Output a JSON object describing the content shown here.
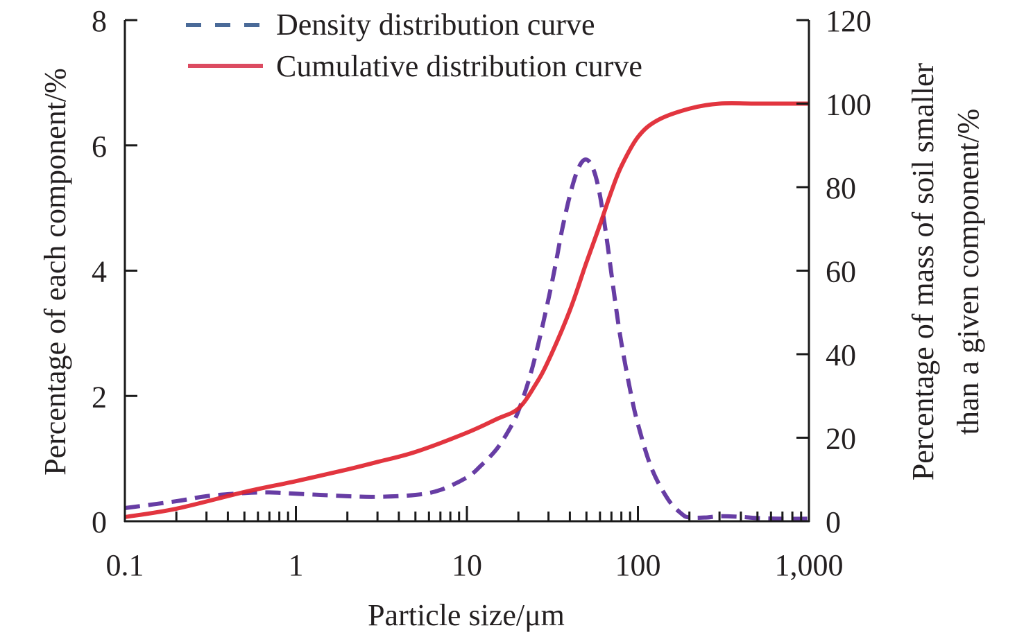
{
  "chart_data": {
    "type": "line",
    "title": "",
    "xlabel": "Particle size/μm",
    "ylabel_left": "Percentage of each component/%",
    "ylabel_right": [
      "Percentage of mass of soil smaller",
      "than a given component/%"
    ],
    "xscale": "log",
    "xlim": [
      0.1,
      1000
    ],
    "ylim_left": [
      0,
      8
    ],
    "ylim_right": [
      0,
      120
    ],
    "x_ticks": [
      0.1,
      1,
      10,
      100,
      1000
    ],
    "x_tick_labels": [
      "0.1",
      "1",
      "10",
      "100",
      "1,000"
    ],
    "y_left_ticks": [
      0,
      2,
      4,
      6,
      8
    ],
    "y_left_tick_labels": [
      "0",
      "2",
      "4",
      "6",
      "8"
    ],
    "y_right_ticks": [
      0,
      20,
      40,
      60,
      80,
      100,
      120
    ],
    "y_right_tick_labels": [
      "0",
      "20",
      "40",
      "60",
      "80",
      "100",
      "120"
    ],
    "grid": false,
    "legend_position": "top-center",
    "series": [
      {
        "name": "Density distribution curve",
        "axis": "left",
        "style": "dashed",
        "color": "#5a2d9c",
        "legend_color": "#4a6a98",
        "x": [
          0.1,
          0.2,
          0.3,
          0.5,
          0.7,
          1,
          2,
          3,
          5,
          7,
          10,
          12,
          15,
          18,
          20,
          23,
          26,
          30,
          33,
          36,
          40,
          44,
          48,
          52,
          56,
          60,
          65,
          70,
          75,
          80,
          90,
          100,
          120,
          150,
          180,
          200,
          250,
          300,
          400,
          500,
          700,
          1000
        ],
        "values": [
          0.21,
          0.32,
          0.4,
          0.45,
          0.46,
          0.44,
          0.4,
          0.39,
          0.42,
          0.5,
          0.7,
          0.88,
          1.16,
          1.5,
          1.76,
          2.25,
          2.8,
          3.55,
          4.1,
          4.65,
          5.2,
          5.58,
          5.76,
          5.74,
          5.55,
          5.2,
          4.6,
          3.95,
          3.35,
          2.85,
          2.1,
          1.55,
          0.85,
          0.35,
          0.12,
          0.06,
          0.06,
          0.08,
          0.07,
          0.05,
          0.04,
          0.04
        ]
      },
      {
        "name": "Cumulative distribution curve",
        "axis": "right",
        "style": "solid",
        "color": "#e0242f",
        "legend_color": "#dc4b61",
        "x": [
          0.1,
          0.2,
          0.5,
          1,
          2,
          3,
          5,
          10,
          15,
          20,
          25,
          30,
          40,
          50,
          60,
          70,
          80,
          100,
          130,
          200,
          300,
          500,
          1000
        ],
        "values": [
          1.0,
          3.0,
          7.0,
          9.6,
          12.4,
          14.2,
          16.6,
          21.2,
          24.5,
          27.0,
          32.5,
          38.5,
          50.5,
          62.0,
          71.0,
          79.0,
          85.0,
          92.0,
          96.0,
          98.8,
          100.0,
          100.0,
          100.0
        ]
      }
    ]
  }
}
